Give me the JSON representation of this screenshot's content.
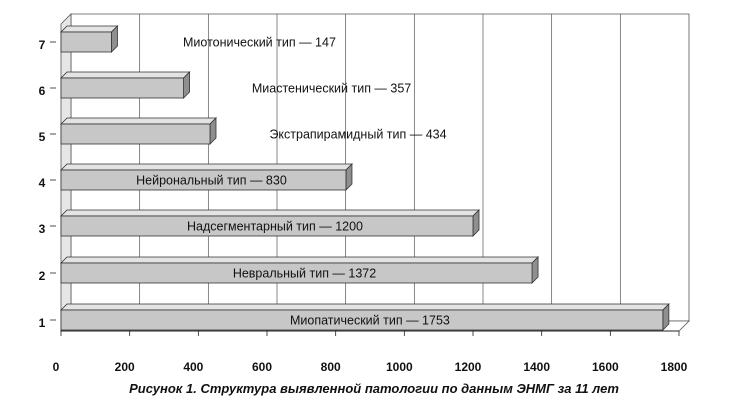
{
  "caption": "Рисунок 1. Структура выявленной патологии по данным ЭНМГ за 11 лет",
  "chart_data": {
    "type": "bar",
    "orientation": "horizontal",
    "style": "3d",
    "categories": [
      "1",
      "2",
      "3",
      "4",
      "5",
      "6",
      "7"
    ],
    "values": [
      1753,
      1372,
      1200,
      830,
      434,
      357,
      147
    ],
    "data_labels": [
      "Миопатический тип — 1753",
      "Невральный тип — 1372",
      "Надсегментарный тип — 1200",
      "Нейрональный тип — 830",
      "Экстрапирамидный тип — 434",
      "Миастенический тип — 357",
      "Миотонический тип — 147"
    ],
    "xlim": [
      0,
      1800
    ],
    "xticks": [
      0,
      200,
      400,
      600,
      800,
      1000,
      1200,
      1400,
      1600,
      1800
    ],
    "grid": true,
    "legend": "none",
    "colors": {
      "bar_face": "#c7c7c7",
      "bar_top": "#e3e3e3",
      "bar_side": "#8f8f8f",
      "wall": "#e6e6e6",
      "grid": "#555555"
    }
  }
}
